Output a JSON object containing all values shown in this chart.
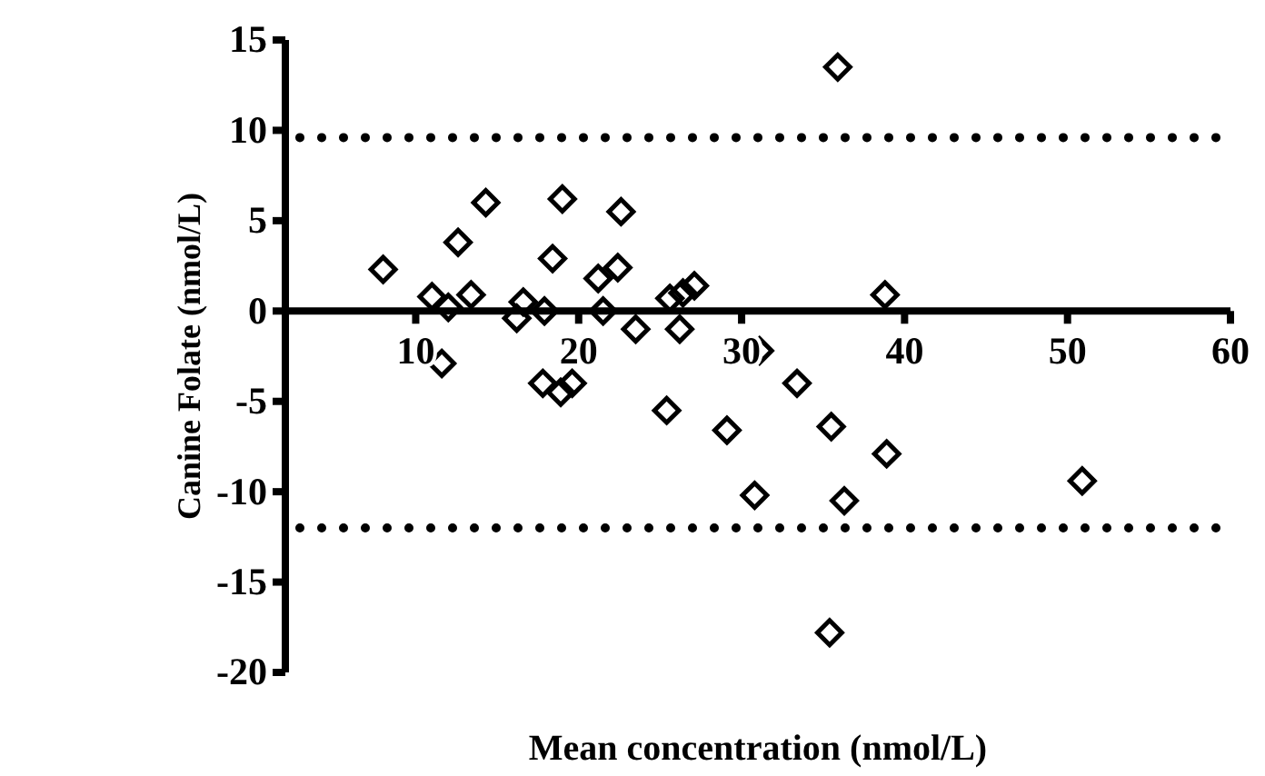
{
  "chart_data": {
    "type": "scatter",
    "xlabel": "Mean concentration (nmol/L)",
    "ylabel": "Canine Folate (nmol/L)",
    "marker": "diamond",
    "series": [
      {
        "color": "#000000",
        "x": [
          8.0,
          11.0,
          12.0,
          12.6,
          13.4,
          14.3,
          16.2,
          16.6,
          17.9,
          18.4,
          19.0,
          21.2,
          21.5,
          22.4,
          22.6,
          23.5,
          25.6,
          26.2,
          26.4,
          27.1,
          11.6,
          17.8,
          18.9,
          19.6,
          25.4,
          29.1,
          31.1,
          33.4,
          30.8,
          35.5,
          36.3,
          38.9,
          38.8,
          35.4,
          35.9,
          50.9
        ],
        "values": [
          2.3,
          0.8,
          0.2,
          3.8,
          0.9,
          6.0,
          -0.4,
          0.5,
          0.0,
          2.9,
          6.2,
          1.8,
          0.0,
          2.4,
          5.5,
          -1.0,
          0.7,
          -1.0,
          1.0,
          1.4,
          -2.9,
          -4.0,
          -4.5,
          -4.0,
          -5.5,
          -6.6,
          -2.2,
          -4.0,
          -10.2,
          -6.4,
          -10.5,
          -7.9,
          0.9,
          -17.8,
          13.5,
          -9.4
        ]
      }
    ],
    "xlim": [
      2,
      60
    ],
    "xticks": [
      10,
      20,
      30,
      40,
      50,
      60
    ],
    "ylim": [
      -20,
      15
    ],
    "yticks": [
      -20,
      -15,
      -10,
      -5,
      0,
      5,
      10,
      15
    ],
    "ref_lines": [
      {
        "axis": "y",
        "value": 9.6,
        "line_style": "dotted"
      },
      {
        "axis": "y",
        "value": -12,
        "line_style": "dotted"
      }
    ],
    "grid": false
  }
}
